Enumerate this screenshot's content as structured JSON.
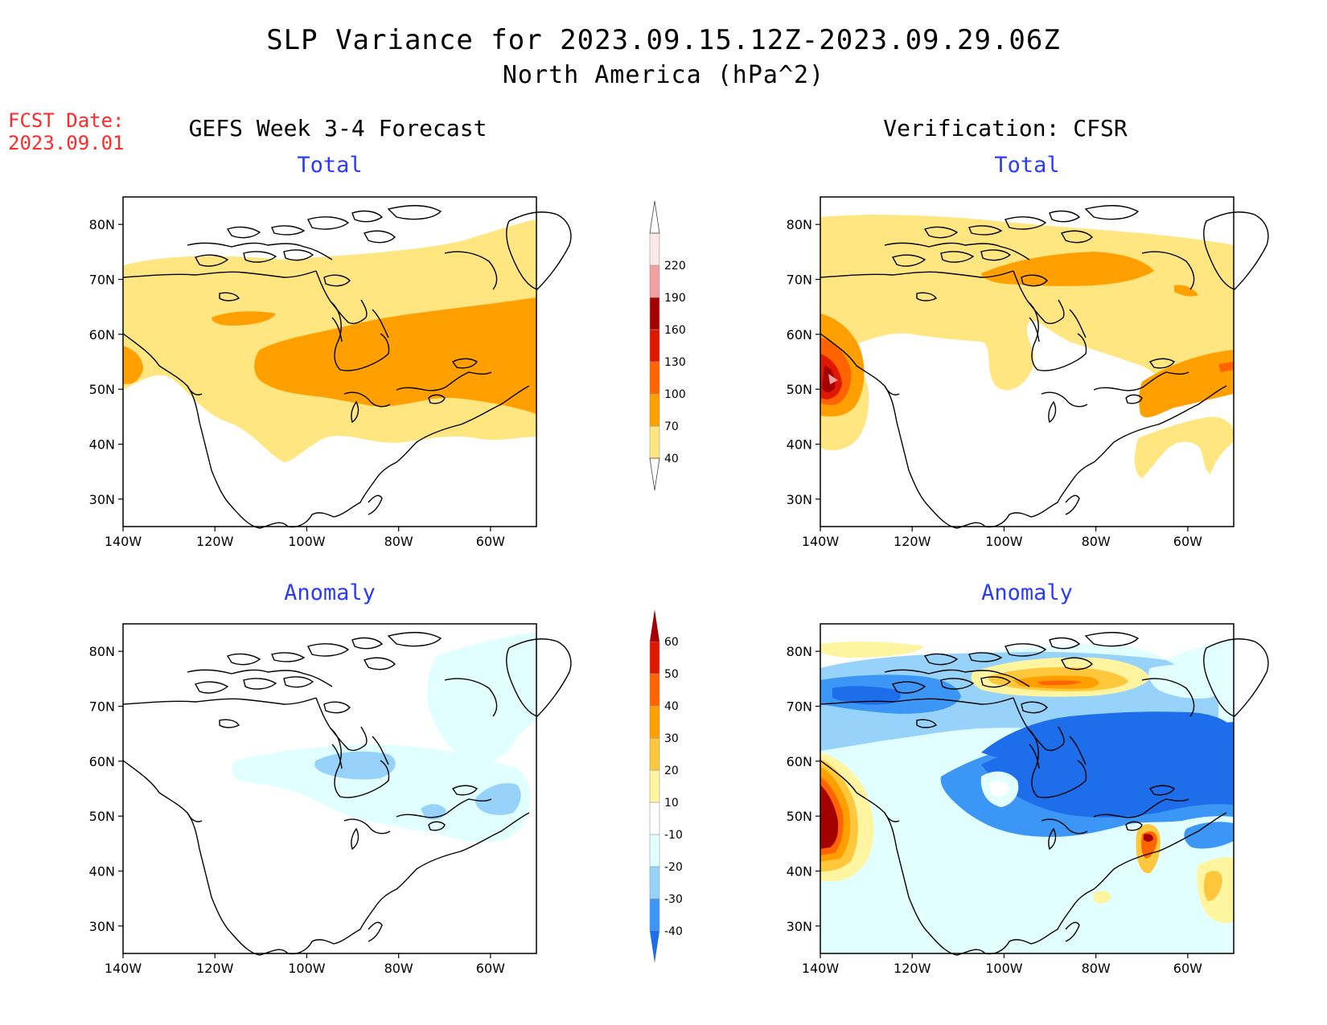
{
  "header": {
    "title": "SLP Variance for 2023.09.15.12Z-2023.09.29.06Z",
    "subtitle": "North America (hPa^2)",
    "fcst_date_label": "FCST Date:",
    "fcst_date_value": "2023.09.01"
  },
  "columns": {
    "left": "GEFS Week 3-4 Forecast",
    "right": "Verification: CFSR"
  },
  "panels": {
    "total": "Total",
    "anomaly": "Anomaly"
  },
  "axes": {
    "lon_ticks": [
      "140W",
      "120W",
      "100W",
      "80W",
      "60W"
    ],
    "lat_ticks": [
      "80N",
      "70N",
      "60N",
      "50N",
      "40N",
      "30N"
    ],
    "lon_range": [
      -140,
      -50
    ],
    "lat_range": [
      25,
      85
    ]
  },
  "colorbars": {
    "total": {
      "labels": [
        "40",
        "70",
        "100",
        "130",
        "160",
        "190",
        "220"
      ],
      "colors": [
        "#ffe680",
        "#ffa000",
        "#ff6400",
        "#e11800",
        "#a50000",
        "#f0a0a0",
        "#fbe8e8"
      ]
    },
    "anomaly": {
      "labels": [
        "-40",
        "-30",
        "-20",
        "-10",
        "10",
        "20",
        "30",
        "40",
        "50",
        "60"
      ],
      "colors": [
        "#1e6eeb",
        "#3c96f5",
        "#96d2fa",
        "#e1ffff",
        "#ffffff",
        "#fff5a0",
        "#ffc83c",
        "#ffa000",
        "#ff6400",
        "#e11800",
        "#a50000"
      ]
    }
  },
  "map_data": {
    "type": "contour-map",
    "variable": "SLP Variance",
    "units": "hPa^2",
    "panels": [
      {
        "name": "GEFS Total",
        "summary": "broad 40-70 band 45-75N, 70-100 core over central/eastern Canada"
      },
      {
        "name": "CFSR Total",
        "summary": "70-100 over Canadian Arctic, maximum >220 off Pacific NW near 48N 137W"
      },
      {
        "name": "GEFS Anomaly",
        "summary": "weak -10 to -20 anomalies over eastern Canada"
      },
      {
        "name": "CFSR Anomaly",
        "summary": "strong negative -30 to -40 over Canada, positive >60 off Pacific NW, positive over Arctic archipelago"
      }
    ]
  }
}
